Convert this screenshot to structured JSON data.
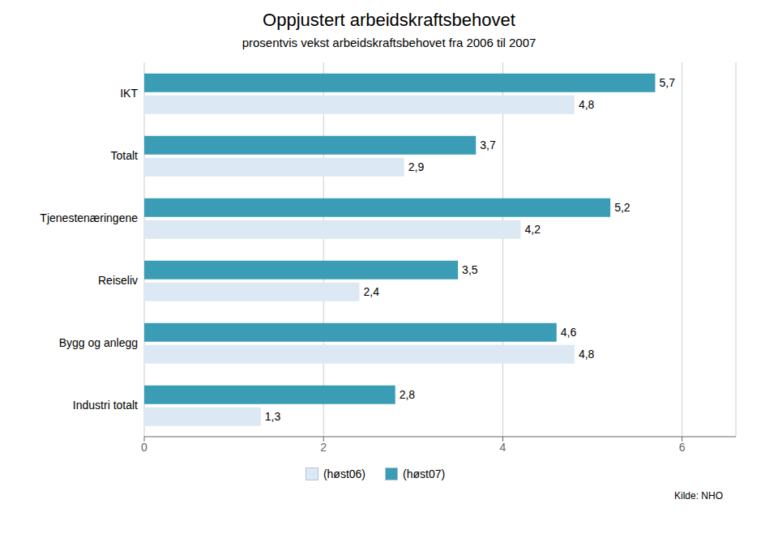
{
  "chart_data": {
    "type": "bar",
    "orientation": "horizontal",
    "title": "Oppjustert arbeidskraftsbehovet",
    "subtitle": "prosentvis vekst arbeidskraftsbehovet fra 2006 til 2007",
    "categories": [
      "IKT",
      "Totalt",
      "Tjenestenæringene",
      "Reiseliv",
      "Bygg og anlegg",
      "Industri  totalt"
    ],
    "series": [
      {
        "name": "(høst06)",
        "color": "#dce9f5",
        "values": [
          4.8,
          2.9,
          4.2,
          2.4,
          4.8,
          1.3
        ],
        "value_labels": [
          "4,8",
          "2,9",
          "4,2",
          "2,4",
          "4,8",
          "1,3"
        ]
      },
      {
        "name": "(høst07)",
        "color": "#3a9db5",
        "values": [
          5.7,
          3.7,
          5.2,
          3.5,
          4.6,
          2.8
        ],
        "value_labels": [
          "5,7",
          "3,7",
          "5,2",
          "3,5",
          "4,6",
          "2,8"
        ]
      }
    ],
    "xlim": [
      0,
      6.6
    ],
    "xticks": [
      0,
      2,
      4,
      6
    ],
    "grid": true,
    "legend": "bottom",
    "data_labels": true,
    "annotations": [
      "Kilde: NHO"
    ]
  }
}
